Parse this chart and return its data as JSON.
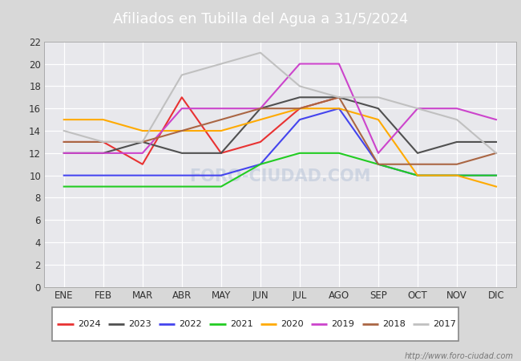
{
  "title": "Afiliados en Tubilla del Agua a 31/5/2024",
  "title_bg_color": "#5b7ec9",
  "title_text_color": "#ffffff",
  "ylim": [
    0,
    22
  ],
  "yticks": [
    0,
    2,
    4,
    6,
    8,
    10,
    12,
    14,
    16,
    18,
    20,
    22
  ],
  "months": [
    "ENE",
    "FEB",
    "MAR",
    "ABR",
    "MAY",
    "JUN",
    "JUL",
    "AGO",
    "SEP",
    "OCT",
    "NOV",
    "DIC"
  ],
  "series": {
    "2024": {
      "color": "#e83232",
      "data": [
        13,
        13,
        11,
        17,
        12,
        13,
        16,
        17,
        null,
        null,
        null,
        null
      ]
    },
    "2023": {
      "color": "#505050",
      "data": [
        12,
        12,
        13,
        12,
        12,
        16,
        17,
        17,
        16,
        12,
        13,
        13
      ]
    },
    "2022": {
      "color": "#4444ee",
      "data": [
        10,
        10,
        10,
        10,
        10,
        11,
        15,
        16,
        11,
        10,
        10,
        10
      ]
    },
    "2021": {
      "color": "#22cc22",
      "data": [
        9,
        9,
        9,
        9,
        9,
        11,
        12,
        12,
        11,
        10,
        10,
        10
      ]
    },
    "2020": {
      "color": "#ffaa00",
      "data": [
        15,
        15,
        14,
        14,
        14,
        15,
        16,
        16,
        15,
        10,
        10,
        9
      ]
    },
    "2019": {
      "color": "#cc44cc",
      "data": [
        12,
        12,
        12,
        16,
        16,
        16,
        20,
        20,
        12,
        16,
        16,
        15
      ]
    },
    "2018": {
      "color": "#aa6644",
      "data": [
        13,
        13,
        13,
        14,
        15,
        16,
        16,
        17,
        11,
        11,
        11,
        12
      ]
    },
    "2017": {
      "color": "#c0c0c0",
      "data": [
        14,
        13,
        13,
        19,
        20,
        21,
        18,
        17,
        17,
        16,
        15,
        12
      ]
    }
  },
  "legend_order": [
    "2024",
    "2023",
    "2022",
    "2021",
    "2020",
    "2019",
    "2018",
    "2017"
  ],
  "fig_bg_color": "#d8d8d8",
  "plot_bg_color": "#e8e8ec",
  "grid_color": "#ffffff",
  "footnote": "http://www.foro-ciudad.com"
}
